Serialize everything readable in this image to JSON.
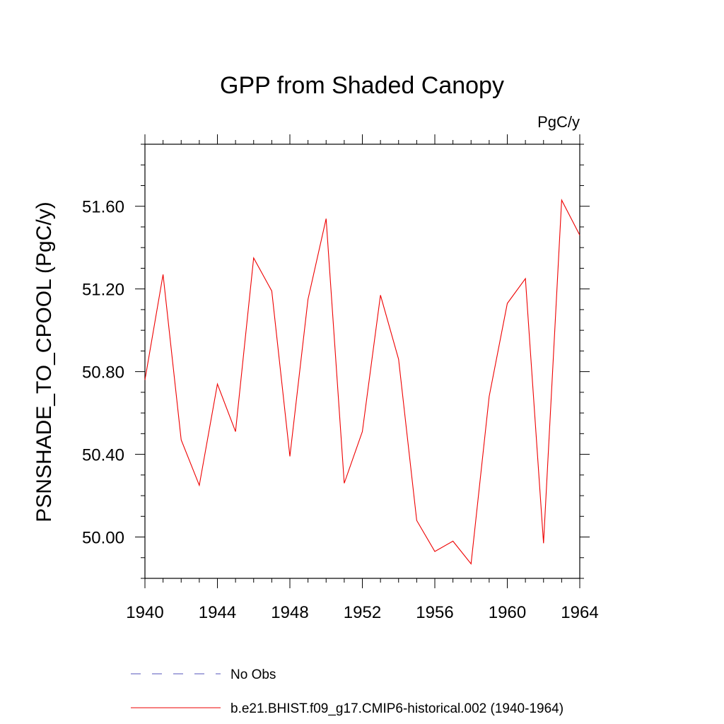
{
  "chart_data": {
    "type": "line",
    "title": "GPP from Shaded Canopy",
    "units_label": "PgC/y",
    "xlabel": "",
    "ylabel": "PSNSHADE_TO_CPOOL  (PgC/y)",
    "xlim": [
      1940,
      1964
    ],
    "ylim": [
      49.8,
      51.9
    ],
    "x_ticks": [
      1940,
      1944,
      1948,
      1952,
      1956,
      1960,
      1964
    ],
    "x_tick_labels": [
      "1940",
      "1944",
      "1948",
      "1952",
      "1956",
      "1960",
      "1964"
    ],
    "y_ticks": [
      50.0,
      50.4,
      50.8,
      51.2,
      51.6
    ],
    "y_tick_labels": [
      "50.00",
      "50.40",
      "50.80",
      "51.20",
      "51.60"
    ],
    "grid": false,
    "series": [
      {
        "name": "No Obs",
        "style": "dashed",
        "color": "#5555bb",
        "x": [],
        "values": []
      },
      {
        "name": "b.e21.BHIST.f09_g17.CMIP6-historical.002 (1940-1964)",
        "style": "solid",
        "color": "#ee0000",
        "x": [
          1940,
          1941,
          1942,
          1943,
          1944,
          1945,
          1946,
          1947,
          1948,
          1949,
          1950,
          1951,
          1952,
          1953,
          1954,
          1955,
          1956,
          1957,
          1958,
          1959,
          1960,
          1961,
          1962,
          1963,
          1964
        ],
        "values": [
          50.76,
          51.27,
          50.47,
          50.25,
          50.74,
          50.51,
          51.35,
          51.19,
          50.39,
          51.15,
          51.54,
          50.26,
          50.51,
          51.17,
          50.86,
          50.08,
          49.93,
          49.98,
          49.87,
          50.68,
          51.13,
          51.25,
          49.97,
          51.63,
          51.46
        ]
      }
    ],
    "legend_position": "bottom"
  }
}
